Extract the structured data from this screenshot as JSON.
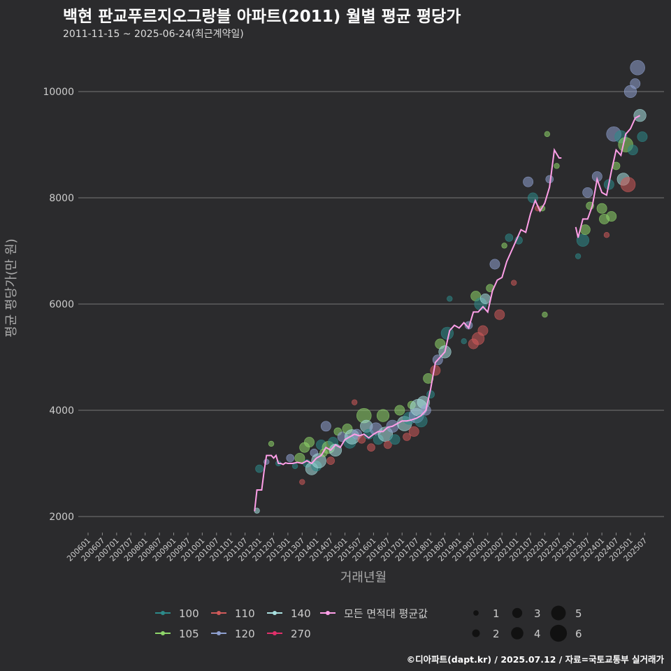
{
  "header": {
    "title": "백현 판교푸르지오그랑블 아파트(2011) 월별 평균 평당가",
    "subtitle": "2011-11-15 ~ 2025-06-24(최근계약일)"
  },
  "caption": "©디아파트(dapt.kr) / 2025.07.12 / 자료=국토교통부 실거래가",
  "colors": {
    "background": "#2b2b2d",
    "grid": "#777777",
    "text": "#cccccc",
    "s100": "#2d8a8a",
    "s105": "#8fd66a",
    "s110": "#d05a5a",
    "s120": "#8fa0d0",
    "s140": "#a8e0e0",
    "s270": "#e0306a",
    "avg": "#ff9fe8"
  },
  "chart_data": {
    "type": "scatter",
    "title": "백현 판교푸르지오그랑블 아파트(2011) 월별 평균 평당가",
    "xlabel": "거래년월",
    "ylabel": "평균 평당가(만 원)",
    "ylim": [
      1800,
      10600
    ],
    "yticks": [
      2000,
      4000,
      6000,
      8000,
      10000
    ],
    "xticks": [
      "200601",
      "200607",
      "200701",
      "200707",
      "200801",
      "200807",
      "200901",
      "200907",
      "201001",
      "201007",
      "201101",
      "201107",
      "201201",
      "201207",
      "201301",
      "201307",
      "201401",
      "201407",
      "201501",
      "201507",
      "201601",
      "201607",
      "201701",
      "201707",
      "201801",
      "201807",
      "201901",
      "201907",
      "202001",
      "202007",
      "202101",
      "202107",
      "202201",
      "202207",
      "202301",
      "202307",
      "202401",
      "202407",
      "202501",
      "202507"
    ],
    "grid": true,
    "legend": {
      "position": "bottom",
      "area_title": "",
      "size_title": "",
      "areas": [
        {
          "key": "100",
          "label": "100",
          "color": "#2d8a8a"
        },
        {
          "key": "105",
          "label": "105",
          "color": "#8fd66a"
        },
        {
          "key": "110",
          "label": "110",
          "color": "#d05a5a"
        },
        {
          "key": "120",
          "label": "120",
          "color": "#8fa0d0"
        },
        {
          "key": "140",
          "label": "140",
          "color": "#a8e0e0"
        },
        {
          "key": "270",
          "label": "270",
          "color": "#e0306a"
        },
        {
          "key": "avg",
          "label": "모든 면적대 평균값",
          "color": "#ff9fe8"
        }
      ],
      "sizes": [
        1,
        2,
        3,
        4,
        5,
        6
      ]
    },
    "average_line": [
      [
        "2011-11",
        2100
      ],
      [
        "2011-12",
        2500
      ],
      [
        "2012-01",
        2500
      ],
      [
        "2012-02",
        2500
      ],
      [
        "2012-03",
        2850
      ],
      [
        "2012-04",
        3150
      ],
      [
        "2012-05",
        3150
      ],
      [
        "2012-06",
        3150
      ],
      [
        "2012-07",
        3100
      ],
      [
        "2012-08",
        3150
      ],
      [
        "2012-09",
        3000
      ],
      [
        "2012-10",
        3000
      ],
      [
        "2012-11",
        2980
      ],
      [
        "2012-12",
        3010
      ],
      [
        "2013-01",
        3000
      ],
      [
        "2013-03",
        3000
      ],
      [
        "2013-05",
        3020
      ],
      [
        "2013-07",
        3000
      ],
      [
        "2013-09",
        3050
      ],
      [
        "2013-11",
        3000
      ],
      [
        "2014-01",
        3100
      ],
      [
        "2014-03",
        3150
      ],
      [
        "2014-05",
        3300
      ],
      [
        "2014-07",
        3250
      ],
      [
        "2014-09",
        3350
      ],
      [
        "2014-11",
        3300
      ],
      [
        "2015-01",
        3450
      ],
      [
        "2015-03",
        3500
      ],
      [
        "2015-05",
        3550
      ],
      [
        "2015-07",
        3520
      ],
      [
        "2015-09",
        3550
      ],
      [
        "2015-11",
        3480
      ],
      [
        "2016-01",
        3550
      ],
      [
        "2016-03",
        3600
      ],
      [
        "2016-05",
        3600
      ],
      [
        "2016-07",
        3680
      ],
      [
        "2016-09",
        3700
      ],
      [
        "2016-11",
        3750
      ],
      [
        "2017-01",
        3800
      ],
      [
        "2017-03",
        3800
      ],
      [
        "2017-05",
        3820
      ],
      [
        "2017-07",
        3850
      ],
      [
        "2017-09",
        3900
      ],
      [
        "2017-11",
        4000
      ],
      [
        "2018-01",
        4400
      ],
      [
        "2018-03",
        4900
      ],
      [
        "2018-05",
        5000
      ],
      [
        "2018-07",
        5100
      ],
      [
        "2018-09",
        5500
      ],
      [
        "2018-11",
        5600
      ],
      [
        "2019-01",
        5550
      ],
      [
        "2019-03",
        5650
      ],
      [
        "2019-05",
        5550
      ],
      [
        "2019-07",
        5850
      ],
      [
        "2019-09",
        5850
      ],
      [
        "2019-11",
        5950
      ],
      [
        "2020-01",
        5850
      ],
      [
        "2020-03",
        6250
      ],
      [
        "2020-05",
        6450
      ],
      [
        "2020-07",
        6500
      ],
      [
        "2020-09",
        6800
      ],
      [
        "2020-11",
        7000
      ],
      [
        "2021-01",
        7200
      ],
      [
        "2021-03",
        7400
      ],
      [
        "2021-05",
        7350
      ],
      [
        "2021-07",
        7700
      ],
      [
        "2021-09",
        7950
      ],
      [
        "2021-11",
        7750
      ],
      [
        "2022-01",
        7900
      ],
      [
        "2022-03",
        8200
      ],
      [
        "2022-05",
        8900
      ],
      [
        "2022-07",
        8750
      ],
      [
        "2022-08",
        8750
      ],
      null,
      [
        "2023-02",
        7450
      ],
      [
        "2023-03",
        7250
      ],
      [
        "2023-05",
        7600
      ],
      [
        "2023-07",
        7600
      ],
      [
        "2023-09",
        7850
      ],
      [
        "2023-11",
        8350
      ],
      [
        "2024-01",
        8100
      ],
      [
        "2024-03",
        8050
      ],
      [
        "2024-05",
        8500
      ],
      [
        "2024-07",
        8900
      ],
      [
        "2024-09",
        8800
      ],
      [
        "2024-11",
        9200
      ],
      [
        "2025-01",
        9300
      ],
      [
        "2025-03",
        9500
      ],
      [
        "2025-05",
        9550
      ]
    ],
    "points": [
      [
        "2012-01",
        2900,
        "100",
        2
      ],
      [
        "2011-12",
        2110,
        "140",
        1
      ],
      [
        "2012-04",
        3030,
        "120",
        1
      ],
      [
        "2012-06",
        3370,
        "105",
        1
      ],
      [
        "2012-09",
        3000,
        "100",
        1
      ],
      [
        "2013-02",
        3100,
        "120",
        2
      ],
      [
        "2013-04",
        2950,
        "100",
        1
      ],
      [
        "2013-06",
        3100,
        "105",
        3
      ],
      [
        "2013-07",
        2650,
        "110",
        1
      ],
      [
        "2013-08",
        3300,
        "105",
        3
      ],
      [
        "2013-09",
        3000,
        "100",
        2
      ],
      [
        "2013-10",
        3400,
        "105",
        3
      ],
      [
        "2013-11",
        2900,
        "140",
        4
      ],
      [
        "2013-12",
        3200,
        "120",
        2
      ],
      [
        "2014-01",
        2950,
        "100",
        3
      ],
      [
        "2014-02",
        3050,
        "140",
        5
      ],
      [
        "2014-03",
        3350,
        "100",
        3
      ],
      [
        "2014-04",
        3200,
        "105",
        2
      ],
      [
        "2014-05",
        3700,
        "120",
        3
      ],
      [
        "2014-06",
        3300,
        "105",
        4
      ],
      [
        "2014-07",
        3050,
        "110",
        2
      ],
      [
        "2014-08",
        3400,
        "100",
        3
      ],
      [
        "2014-09",
        3250,
        "140",
        4
      ],
      [
        "2014-10",
        3600,
        "105",
        2
      ],
      [
        "2014-12",
        3500,
        "120",
        3
      ],
      [
        "2015-02",
        3650,
        "105",
        3
      ],
      [
        "2015-03",
        3400,
        "100",
        4
      ],
      [
        "2015-04",
        3500,
        "140",
        5
      ],
      [
        "2015-05",
        4150,
        "110",
        1
      ],
      [
        "2015-06",
        3550,
        "120",
        3
      ],
      [
        "2015-08",
        3450,
        "110",
        2
      ],
      [
        "2015-09",
        3900,
        "105",
        5
      ],
      [
        "2015-10",
        3700,
        "140",
        4
      ],
      [
        "2015-11",
        3550,
        "100",
        3
      ],
      [
        "2015-12",
        3300,
        "110",
        2
      ],
      [
        "2016-02",
        3650,
        "120",
        4
      ],
      [
        "2016-03",
        3450,
        "100",
        3
      ],
      [
        "2016-05",
        3900,
        "105",
        4
      ],
      [
        "2016-06",
        3550,
        "140",
        5
      ],
      [
        "2016-07",
        3350,
        "110",
        2
      ],
      [
        "2016-09",
        3700,
        "120",
        4
      ],
      [
        "2016-10",
        3450,
        "100",
        3
      ],
      [
        "2016-12",
        4000,
        "105",
        3
      ],
      [
        "2017-02",
        3750,
        "140",
        5
      ],
      [
        "2017-03",
        3500,
        "110",
        2
      ],
      [
        "2017-04",
        3850,
        "100",
        4
      ],
      [
        "2017-05",
        4100,
        "105",
        2
      ],
      [
        "2017-06",
        3600,
        "110",
        3
      ],
      [
        "2017-07",
        3900,
        "120",
        5
      ],
      [
        "2017-08",
        4050,
        "140",
        6
      ],
      [
        "2017-09",
        3800,
        "100",
        4
      ],
      [
        "2017-10",
        4150,
        "140",
        4
      ],
      [
        "2017-11",
        4000,
        "120",
        3
      ],
      [
        "2017-12",
        4600,
        "105",
        3
      ],
      [
        "2018-01",
        4300,
        "100",
        2
      ],
      [
        "2018-03",
        4750,
        "110",
        3
      ],
      [
        "2018-04",
        4950,
        "120",
        3
      ],
      [
        "2018-05",
        5250,
        "105",
        3
      ],
      [
        "2018-07",
        5100,
        "140",
        4
      ],
      [
        "2018-08",
        5450,
        "100",
        4
      ],
      [
        "2018-09",
        6100,
        "100",
        1
      ],
      [
        "2019-03",
        5300,
        "100",
        1
      ],
      [
        "2019-05",
        5600,
        "120",
        2
      ],
      [
        "2019-07",
        5250,
        "110",
        3
      ],
      [
        "2019-08",
        6150,
        "105",
        3
      ],
      [
        "2019-09",
        5350,
        "110",
        4
      ],
      [
        "2019-10",
        6000,
        "100",
        4
      ],
      [
        "2019-11",
        5500,
        "110",
        3
      ],
      [
        "2019-12",
        6100,
        "140",
        3
      ],
      [
        "2020-02",
        6300,
        "105",
        2
      ],
      [
        "2020-04",
        6750,
        "120",
        3
      ],
      [
        "2020-06",
        5800,
        "110",
        3
      ],
      [
        "2020-08",
        7100,
        "105",
        1
      ],
      [
        "2020-10",
        7250,
        "100",
        2
      ],
      [
        "2020-12",
        6400,
        "110",
        1
      ],
      [
        "2021-02",
        7200,
        "100",
        2
      ],
      [
        "2021-06",
        8300,
        "120",
        3
      ],
      [
        "2021-08",
        8000,
        "100",
        3
      ],
      [
        "2021-10",
        7800,
        "110",
        1
      ],
      [
        "2021-12",
        7800,
        "105",
        1
      ],
      [
        "2022-02",
        9200,
        "105",
        1
      ],
      [
        "2022-03",
        8350,
        "120",
        2
      ],
      [
        "2022-06",
        8600,
        "105",
        1
      ],
      [
        "2022-01",
        5800,
        "105",
        1
      ],
      [
        "2023-03",
        6900,
        "100",
        1
      ],
      [
        "2023-05",
        7200,
        "100",
        4
      ],
      [
        "2023-06",
        7400,
        "105",
        3
      ],
      [
        "2023-07",
        8100,
        "120",
        3
      ],
      [
        "2023-08",
        7850,
        "105",
        2
      ],
      [
        "2023-11",
        8400,
        "120",
        3
      ],
      [
        "2024-01",
        7800,
        "105",
        3
      ],
      [
        "2024-02",
        7600,
        "105",
        3
      ],
      [
        "2024-03",
        7300,
        "110",
        1
      ],
      [
        "2024-04",
        8250,
        "100",
        3
      ],
      [
        "2024-05",
        7650,
        "105",
        3
      ],
      [
        "2024-06",
        9200,
        "120",
        5
      ],
      [
        "2024-07",
        8600,
        "105",
        2
      ],
      [
        "2024-09",
        9150,
        "100",
        4
      ],
      [
        "2024-10",
        8350,
        "140",
        4
      ],
      [
        "2024-11",
        9000,
        "105",
        5
      ],
      [
        "2024-12",
        8250,
        "110",
        5
      ],
      [
        "2025-01",
        10000,
        "120",
        4
      ],
      [
        "2025-02",
        8900,
        "100",
        3
      ],
      [
        "2025-03",
        10150,
        "120",
        3
      ],
      [
        "2025-04",
        10450,
        "120",
        5
      ],
      [
        "2025-05",
        9550,
        "140",
        4
      ],
      [
        "2025-06",
        9150,
        "100",
        3
      ]
    ]
  }
}
